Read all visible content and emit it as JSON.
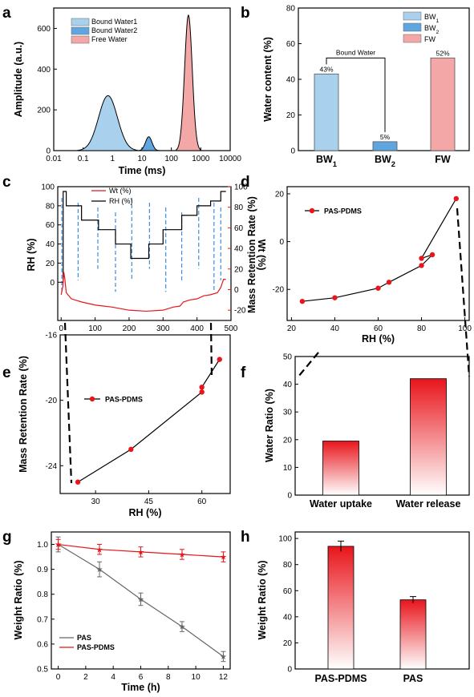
{
  "panel_labels": [
    "a",
    "b",
    "c",
    "d",
    "e",
    "f",
    "g",
    "h"
  ],
  "colors": {
    "bw1": "#a9d1ee",
    "bw2": "#5fa6e1",
    "fw": "#f4a7a7",
    "red": "#e8151b",
    "black": "#000000",
    "gray": "#666666",
    "dash": "#3a8fe0"
  },
  "chart_data": [
    {
      "id": "a",
      "type": "area",
      "xlabel": "Time (ms)",
      "ylabel": "Amplitude (a.u.)",
      "xscale": "log",
      "xlim": [
        0.01,
        10000
      ],
      "ylim": [
        0,
        700
      ],
      "xticks": [
        "0.01",
        "0.1",
        "1",
        "10",
        "100",
        "1000",
        "10000"
      ],
      "yticks": [
        "0",
        "200",
        "400",
        "600"
      ],
      "series": [
        {
          "name": "Bound Water1",
          "peak_x": 0.7,
          "peak_y": 270
        },
        {
          "name": "Bound Water2",
          "peak_x": 17,
          "peak_y": 68
        },
        {
          "name": "Free Water",
          "peak_x": 380,
          "peak_y": 665
        }
      ],
      "legend": [
        "Bound Water1",
        "Bound Water2",
        "Free Water"
      ],
      "legend_position": "top-left"
    },
    {
      "id": "b",
      "type": "bar",
      "ylabel": "Water content (%)",
      "ylim": [
        0,
        80
      ],
      "yticks": [
        "0",
        "20",
        "40",
        "60",
        "80"
      ],
      "categories": [
        {
          "main": "BW",
          "sub": "1"
        },
        {
          "main": "BW",
          "sub": "2"
        },
        {
          "main": "FW",
          "sub": ""
        }
      ],
      "values": [
        43,
        5,
        52
      ],
      "data_labels": [
        "43%",
        "5%",
        "52%"
      ],
      "annotation": "Bound Water",
      "legend": [
        {
          "main": "BW",
          "sub": "1"
        },
        {
          "main": "BW",
          "sub": "2"
        },
        {
          "main": "FW",
          "sub": ""
        }
      ],
      "legend_position": "top-right"
    },
    {
      "id": "c",
      "type": "line",
      "ylabel_left": "RH (%)",
      "ylabel_right": "Wt (%)",
      "xlim": [
        -10,
        500
      ],
      "ylim_left": [
        -40,
        100
      ],
      "ylim_right": [
        -30,
        100
      ],
      "xticks": [
        "0",
        "100",
        "200",
        "300",
        "400",
        "500"
      ],
      "yticks_left": [
        "0",
        "20",
        "40",
        "60",
        "80",
        "100"
      ],
      "yticks_right": [
        "-20",
        "0",
        "20",
        "40",
        "60",
        "80",
        "100"
      ],
      "legend": [
        "Wt (%)",
        "RH (%)"
      ],
      "legend_position": "top-left",
      "series": [
        {
          "name": "RH (%)",
          "x": [
            0,
            6,
            6,
            15,
            15,
            60,
            60,
            110,
            110,
            160,
            160,
            205,
            205,
            258,
            258,
            300,
            300,
            355,
            355,
            400,
            400,
            440,
            440,
            470,
            470,
            485
          ],
          "y": [
            0,
            0,
            95,
            95,
            80,
            80,
            65,
            65,
            55,
            55,
            40,
            40,
            25,
            25,
            40,
            40,
            55,
            55,
            70,
            70,
            80,
            80,
            85,
            85,
            95,
            95
          ]
        },
        {
          "name": "Wt (%)",
          "x": [
            0,
            5,
            8,
            11,
            15,
            30,
            60,
            100,
            150,
            200,
            250,
            300,
            330,
            350,
            360,
            380,
            400,
            420,
            440,
            460,
            470,
            478,
            485
          ],
          "y": [
            -5,
            3,
            17,
            10,
            -3,
            -9,
            -12,
            -15,
            -17,
            -20,
            -21,
            -20,
            -17,
            -16,
            -12,
            -10,
            -9,
            -6,
            -5,
            -3,
            2,
            10,
            10
          ]
        }
      ],
      "dashed_x": [
        2,
        50,
        108,
        160,
        208,
        260,
        308,
        355,
        405,
        450,
        470
      ],
      "dashed_span_left": [
        -10,
        100
      ]
    },
    {
      "id": "d",
      "type": "scatter",
      "xlabel": "RH (%)",
      "ylabel": "Mass Retention Rate (%)",
      "xlim": [
        18,
        102
      ],
      "ylim": [
        -33,
        23
      ],
      "xticks": [
        "20",
        "40",
        "60",
        "80",
        "100"
      ],
      "yticks": [
        "-20",
        "0",
        "20"
      ],
      "legend": [
        "PAS-PDMS"
      ],
      "legend_position": "top-left",
      "series": [
        {
          "name": "PAS-PDMS",
          "x": [
            25,
            40,
            60,
            65,
            80,
            80,
            85,
            96
          ],
          "y": [
            -25,
            -23.5,
            -19.5,
            -17,
            -10,
            -7,
            -5.5,
            18
          ],
          "path": [
            [
              25,
              -25
            ],
            [
              40,
              -23.5
            ],
            [
              60,
              -19.5
            ],
            [
              65,
              -17
            ],
            [
              80,
              -10
            ],
            [
              85,
              -5.5
            ],
            [
              80,
              -7
            ],
            [
              96,
              18
            ]
          ]
        }
      ]
    },
    {
      "id": "e",
      "type": "scatter",
      "xlabel": "RH (%)",
      "ylabel": "Mass Retention Rate (%)",
      "xlim": [
        20,
        68
      ],
      "ylim": [
        -25.7,
        -16
      ],
      "xticks": [
        "30",
        "45",
        "60"
      ],
      "yticks": [
        "-24",
        "-20",
        "-16"
      ],
      "legend": [
        "PAS-PDMS"
      ],
      "legend_position": "top-left",
      "series": [
        {
          "name": "PAS-PDMS",
          "x": [
            25,
            40,
            60,
            60,
            65
          ],
          "y": [
            -25,
            -23,
            -19.2,
            -19.5,
            -17.5
          ],
          "path": [
            [
              25,
              -25
            ],
            [
              40,
              -23
            ],
            [
              60,
              -19.5
            ],
            [
              60,
              -19.2
            ],
            [
              65,
              -17.5
            ]
          ]
        }
      ]
    },
    {
      "id": "f",
      "type": "bar",
      "ylabel": "Water Ratio (%)",
      "ylim": [
        0,
        50
      ],
      "yticks": [
        "0",
        "10",
        "20",
        "30",
        "40",
        "50"
      ],
      "categories": [
        "Water uptake",
        "Water release"
      ],
      "values": [
        19.5,
        42
      ]
    },
    {
      "id": "g",
      "type": "line",
      "xlabel": "Time (h)",
      "ylabel": "Weight Ratio (%)",
      "xlim": [
        -0.5,
        12.5
      ],
      "ylim": [
        0.5,
        1.05
      ],
      "xticks": [
        "0",
        "2",
        "4",
        "6",
        "8",
        "10",
        "12"
      ],
      "yticks": [
        "0.5",
        "0.6",
        "0.7",
        "0.8",
        "0.9",
        "1.0"
      ],
      "legend": [
        "PAS",
        "PAS-PDMS"
      ],
      "legend_position": "bottom-left",
      "series": [
        {
          "name": "PAS",
          "x": [
            0,
            3,
            6,
            9,
            12
          ],
          "y": [
            1.0,
            0.9,
            0.78,
            0.67,
            0.55
          ],
          "err": [
            0.03,
            0.03,
            0.025,
            0.02,
            0.02
          ]
        },
        {
          "name": "PAS-PDMS",
          "x": [
            0,
            3,
            6,
            9,
            12
          ],
          "y": [
            1.0,
            0.98,
            0.97,
            0.96,
            0.95
          ],
          "err": [
            0.02,
            0.02,
            0.02,
            0.02,
            0.02
          ]
        }
      ]
    },
    {
      "id": "h",
      "type": "bar",
      "ylabel": "Weight Ratio (%)",
      "ylim": [
        0,
        105
      ],
      "yticks": [
        "0",
        "20",
        "40",
        "60",
        "80",
        "100"
      ],
      "categories": [
        "PAS-PDMS",
        "PAS"
      ],
      "values": [
        94,
        53
      ],
      "errors": [
        4,
        2.5
      ]
    }
  ]
}
